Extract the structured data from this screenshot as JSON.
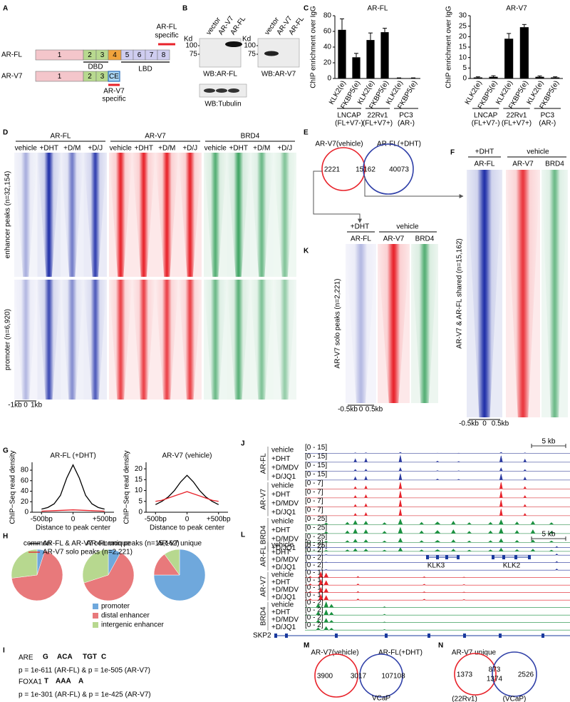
{
  "panels": {
    "A": {
      "letter": "A",
      "rows": [
        "AR-FL",
        "AR-V7"
      ],
      "fl_exons": [
        "1",
        "2",
        "3",
        "4",
        "5",
        "6",
        "7",
        "8"
      ],
      "v7_exons": [
        "1",
        "2",
        "3",
        "CE"
      ],
      "dbd": "DBD",
      "lbd": "LBD",
      "fl_specific": [
        "AR-FL",
        "specific"
      ],
      "v7_specific": [
        "AR-V7",
        "specific"
      ]
    },
    "B": {
      "letter": "B",
      "lanes": [
        "vector",
        "AR-V7",
        "AR-FL"
      ],
      "kd": "Kd",
      "markers": [
        "100",
        "75"
      ],
      "blots": [
        "WB:AR-FL",
        "WB:AR-V7",
        "WB:Tubulin"
      ]
    },
    "C": {
      "letter": "C"
    },
    "D": {
      "letter": "D",
      "groups": [
        "AR-FL",
        "AR-V7",
        "BRD4"
      ],
      "conditions": [
        "vehicle",
        "+DHT",
        "+D/M",
        "+D/J"
      ],
      "rows": [
        "enhancer peaks (n=32,154)",
        "promoter (n=6,920)"
      ],
      "axis": [
        "-1kb",
        "0",
        "1kb"
      ]
    },
    "E": {
      "letter": "E",
      "sets": [
        "AR-V7(vehicle)",
        "AR-FL(+DHT)"
      ],
      "counts": [
        2221,
        15162,
        40073
      ]
    },
    "F": {
      "letter": "F",
      "treatments": [
        "+DHT",
        "vehicle"
      ],
      "columns": [
        "AR-FL",
        "AR-V7",
        "BRD4"
      ],
      "row": "AR-V7 & AR-FL shared (n=15,162)",
      "axis": [
        "-0.5kb",
        "0",
        "0.5kb"
      ]
    },
    "K": {
      "letter": "K",
      "treatments": [
        "+DHT",
        "vehicle"
      ],
      "columns": [
        "AR-FL",
        "AR-V7",
        "BRD4"
      ],
      "row": "AR-V7 solo peaks (n=2,221)",
      "axis": [
        "-0.5kb",
        "0",
        "0.5kb"
      ]
    },
    "G": {
      "letter": "G"
    },
    "H": {
      "letter": "H"
    },
    "I": {
      "letter": "I",
      "motifs": [
        {
          "name": "ARE",
          "logo": [
            "G",
            "ACA",
            "TGT",
            "C"
          ],
          "p": "p = 1e-611 (AR-FL) & p = 1e-505 (AR-V7)"
        },
        {
          "name": "FOXA1",
          "logo": [
            "T",
            "AAA",
            "A"
          ],
          "p": "p = 1e-301 (AR-FL) & p = 1e-425 (AR-V7)"
        }
      ]
    },
    "J": {
      "letter": "J",
      "scale": "5 kb",
      "genes": [
        "KLK3",
        "KLK2"
      ],
      "tracks": [
        {
          "name": "AR-FL",
          "color": "#2b3aa0",
          "range": "[0 - 15]",
          "conditions": [
            "vehicle",
            "+DHT",
            "+D/MDV",
            "+D/JQ1"
          ]
        },
        {
          "name": "AR-V7",
          "color": "#e8222a",
          "range": "[0 - 7]",
          "conditions": [
            "vehicle",
            "+DHT",
            "+D/MDV",
            "+D/JQ1"
          ]
        },
        {
          "name": "BRD4",
          "color": "#1a9140",
          "range": "[0 - 25]",
          "conditions": [
            "vehicle",
            "+DHT",
            "+D/MDV",
            "+D/JQ1"
          ]
        }
      ]
    },
    "L": {
      "letter": "L",
      "scale": "5 kb",
      "genes": [
        "SKP2"
      ],
      "tracks": [
        {
          "name": "AR-FL",
          "color": "#2b3aa0",
          "range": "[0 - 2]",
          "conditions": [
            "vehicle",
            "+DHT",
            "+D/MDV",
            "+D/JQ1"
          ]
        },
        {
          "name": "AR-V7",
          "color": "#e8222a",
          "range": "[0 - 1]",
          "conditions": [
            "vehicle",
            "+DHT",
            "+D/MDV",
            "+D/JQ1"
          ]
        },
        {
          "name": "BRD4",
          "color": "#1a9140",
          "range": "[0 - 2]",
          "conditions": [
            "vehicle",
            "+DHT",
            "+D/MDV",
            "+D/JQ1"
          ]
        }
      ]
    },
    "M": {
      "letter": "M",
      "sets": [
        "AR-V7(vehicle)",
        "AR-FL(+DHT)"
      ],
      "counts": [
        3900,
        3017,
        107108
      ],
      "below": "VCaP"
    },
    "N": {
      "letter": "N",
      "title": "AR-V7 unique",
      "counts": [
        1373,
        873,
        1374,
        2526
      ],
      "sets": [
        "(22Rv1)",
        "(VCaP)"
      ]
    }
  },
  "chart_data": [
    {
      "type": "bar",
      "title": "AR-FL",
      "ylabel": "ChIP enrichment over IgG",
      "categories": [
        "KLK2(e)",
        "FKBP5(e)",
        "KLK2(e)",
        "FKBP5(e)",
        "KLK2(e)",
        "FKBP5(e)"
      ],
      "values": [
        62,
        27,
        49,
        59,
        0.5,
        0.5
      ],
      "errors": [
        14,
        5,
        9,
        5,
        0.3,
        0.3
      ],
      "groups": [
        [
          "LNCAP",
          "(FL+V7-)"
        ],
        [
          "22Rv1",
          "(FL+V7+)"
        ],
        [
          "PC3",
          "(AR-)"
        ]
      ],
      "color": "#000000",
      "ylim": [
        0,
        80
      ],
      "yticks": [
        0,
        20,
        40,
        60,
        80
      ]
    },
    {
      "type": "bar",
      "title": "AR-V7",
      "ylabel": "ChIP enrichment over IgG",
      "categories": [
        "KLK2(e)",
        "FKBP5(e)",
        "KLK2(e)",
        "FKBP5(e)",
        "KLK2(e)",
        "FKBP5(e)"
      ],
      "values": [
        0.5,
        0.8,
        19,
        24.5,
        0.8,
        0.5
      ],
      "errors": [
        0.3,
        0.5,
        2.5,
        1.3,
        0.4,
        0.3
      ],
      "groups": [
        [
          "LNCAP",
          "(FL+V7-)"
        ],
        [
          "22Rv1",
          "(FL+V7+)"
        ],
        [
          "PC3",
          "(AR-)"
        ]
      ],
      "color": "#000000",
      "ylim": [
        0,
        30
      ],
      "yticks": [
        0,
        5,
        10,
        15,
        20,
        25,
        30
      ]
    },
    {
      "type": "line",
      "title": "AR-FL (+DHT)",
      "ylabel": "ChIP−Seq read density",
      "xlabel": "Distance to peak center",
      "x": [
        -500,
        -400,
        -300,
        -200,
        -100,
        0,
        100,
        200,
        300,
        400,
        500
      ],
      "xlim": [
        -650,
        650
      ],
      "xticks": [
        {
          "value": -500,
          "label": "-500bp"
        },
        0,
        {
          "value": 500,
          "label": "+500bp"
        }
      ],
      "ylim": [
        0,
        95
      ],
      "yticks": [
        0,
        20,
        40,
        60,
        80
      ],
      "series": [
        {
          "name": "AR-FL & AR-V7 common peaks (n=15,162)",
          "color": "#000000",
          "values": [
            6,
            9,
            16,
            32,
            65,
            90,
            65,
            32,
            16,
            9,
            6
          ]
        },
        {
          "name": "AR-V7 solo peaks (n=2,221)",
          "color": "#e8222a",
          "values": [
            2,
            2.5,
            3,
            3.5,
            4,
            4.5,
            4,
            3.5,
            3,
            2.5,
            2
          ]
        }
      ]
    },
    {
      "type": "line",
      "title": "AR-V7 (vehicle)",
      "ylabel": "ChIP−Seq read density",
      "xlabel": "Distance to peak center",
      "x": [
        -500,
        -400,
        -300,
        -200,
        -100,
        0,
        100,
        200,
        300,
        400,
        500
      ],
      "xlim": [
        -650,
        650
      ],
      "xticks": [
        {
          "value": -500,
          "label": "-500bp"
        },
        0,
        {
          "value": 500,
          "label": "+500bp"
        }
      ],
      "ylim": [
        0,
        23
      ],
      "yticks": [
        0,
        5,
        10,
        15,
        20
      ],
      "series": [
        {
          "color": "#000000",
          "values": [
            3.5,
            5,
            7,
            10,
            14,
            17,
            14,
            10,
            7,
            5,
            3.5
          ]
        },
        {
          "color": "#e8222a",
          "values": [
            5,
            5.5,
            6.5,
            7.5,
            8.5,
            9.5,
            8.5,
            7.5,
            6.5,
            5.5,
            5
          ]
        }
      ]
    },
    {
      "type": "pie",
      "title": "common",
      "categories": [
        "promoter",
        "distal enhancer",
        "intergenic enhancer"
      ],
      "colors": [
        "#6fa8dc",
        "#e8797b",
        "#b7d88f"
      ],
      "values": [
        5,
        68,
        27
      ]
    },
    {
      "type": "pie",
      "title": "AR-FL unique",
      "colors": [
        "#6fa8dc",
        "#e8797b",
        "#b7d88f"
      ],
      "values": [
        8,
        62,
        30
      ]
    },
    {
      "type": "pie",
      "title": "AR-V7 unique",
      "colors": [
        "#6fa8dc",
        "#e8797b",
        "#b7d88f"
      ],
      "values": [
        75,
        15,
        10
      ]
    }
  ]
}
